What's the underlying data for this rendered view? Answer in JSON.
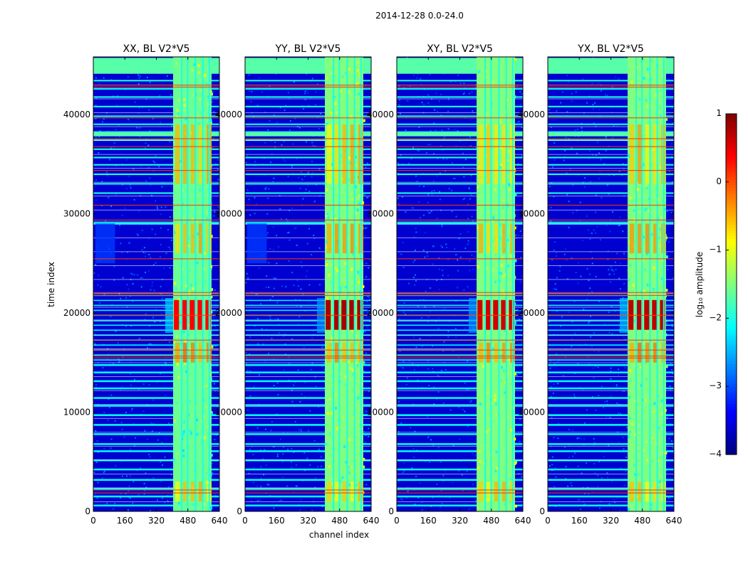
{
  "chart_data": {
    "type": "heatmap",
    "suptitle": "2014-12-28 0.0-24.0",
    "xlabel": "channel index",
    "ylabel": "time index",
    "colormap": "jet",
    "xlim": [
      0,
      640
    ],
    "ylim": [
      0,
      45800
    ],
    "x_ticks": [
      0,
      160,
      320,
      480,
      640
    ],
    "y_ticks": [
      0,
      10000,
      20000,
      30000,
      40000
    ],
    "panels": [
      {
        "title": "XX, BL V2*V5",
        "band_channels": [
          405,
          600
        ],
        "band_value": -1.6,
        "flare_value": 0.4,
        "wing_value": -2.3
      },
      {
        "title": "YY, BL V2*V5",
        "band_channels": [
          405,
          600
        ],
        "band_value": -1.5,
        "flare_value": 0.8,
        "wing_value": -2.6
      },
      {
        "title": "XY, BL V2*V5",
        "band_channels": [
          405,
          600
        ],
        "band_value": -1.5,
        "flare_value": 0.6,
        "wing_value": -2.6
      },
      {
        "title": "YX, BL V2*V5",
        "band_channels": [
          405,
          600
        ],
        "band_value": -1.5,
        "flare_value": 0.7,
        "wing_value": -2.4
      }
    ],
    "colorbar": {
      "label": "log₁₀ amplitude",
      "range": [
        -4,
        1
      ],
      "ticks": [
        1,
        0,
        -1,
        -2,
        -3,
        -4
      ],
      "tick_labels": [
        "1",
        "0",
        "−1",
        "−2",
        "−3",
        "−4"
      ]
    }
  }
}
